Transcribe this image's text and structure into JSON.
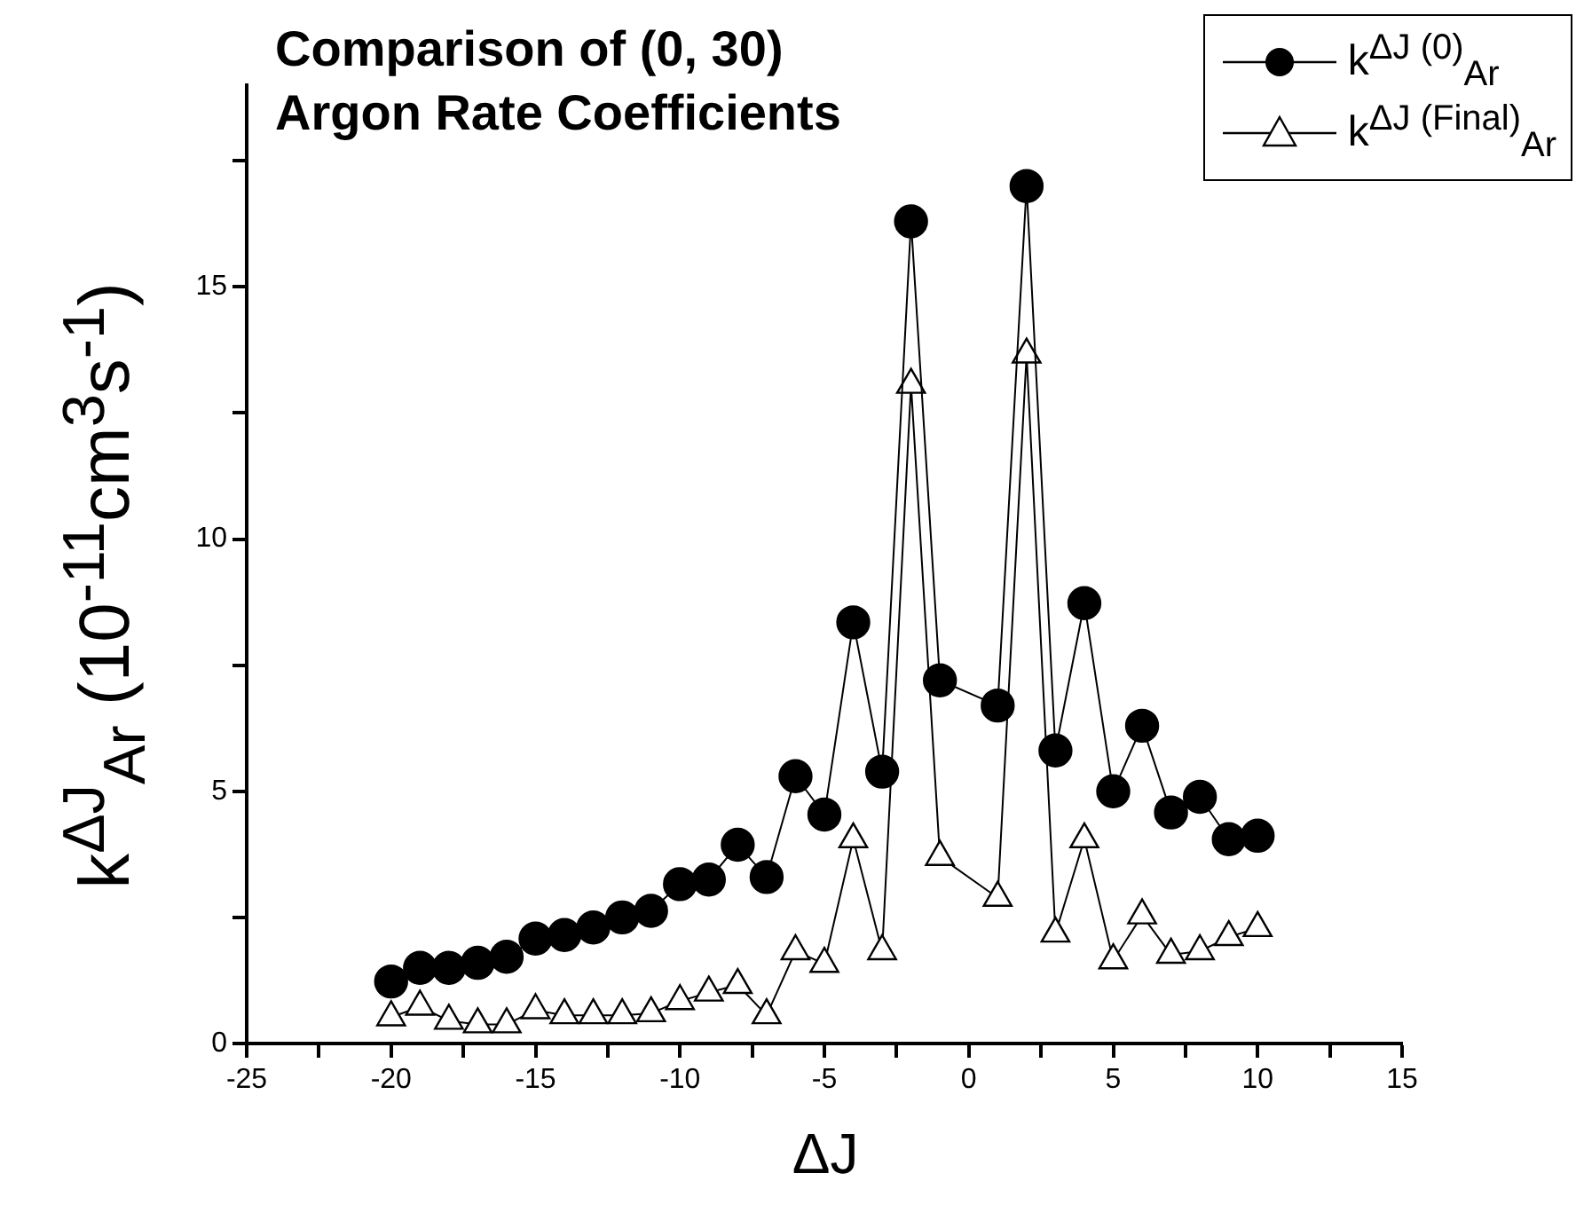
{
  "chart_data": {
    "type": "line",
    "title": "Comparison of (0, 30) Argon Rate Coefficients",
    "xlabel": "ΔJ",
    "ylabel": "k$^{ΔJ}$$_{Ar}$ (10$^{-11}$cm$^{3}$s$^{-1}$)",
    "x": [
      -20,
      -19,
      -18,
      -17,
      -16,
      -15,
      -14,
      -13,
      -12,
      -11,
      -10,
      -9,
      -8,
      -7,
      -6,
      -5,
      -4,
      -3,
      -2,
      -1,
      1,
      2,
      3,
      4,
      5,
      6,
      7,
      8,
      9,
      10
    ],
    "series": [
      {
        "name": "k$^{ΔJ (0)}$$_{Ar}$",
        "color": "#000000",
        "marker": "circle",
        "values": [
          1.23,
          1.5,
          1.5,
          1.6,
          1.72,
          2.08,
          2.15,
          2.3,
          2.5,
          2.63,
          3.16,
          3.25,
          3.94,
          3.3,
          5.3,
          4.54,
          8.35,
          5.39,
          16.3,
          7.2,
          6.7,
          17.0,
          5.81,
          8.73,
          5.0,
          6.3,
          4.58,
          4.89,
          4.05,
          4.12
        ]
      },
      {
        "name": "k$^{ΔJ (Final)}$$_{Ar}$",
        "color": "#000000",
        "marker": "triangle",
        "values": [
          0.52,
          0.73,
          0.45,
          0.38,
          0.38,
          0.66,
          0.56,
          0.56,
          0.56,
          0.6,
          0.84,
          1.01,
          1.16,
          0.56,
          1.83,
          1.58,
          4.05,
          1.83,
          13.06,
          3.7,
          2.89,
          13.66,
          2.18,
          4.05,
          1.65,
          2.54,
          1.76,
          1.83,
          2.11,
          2.29
        ]
      }
    ],
    "xlim": [
      -25,
      15
    ],
    "xticks": [
      -25,
      {
        "value": -22.5,
        "label": null
      },
      -20,
      {
        "value": -17.5,
        "label": null
      },
      -15,
      {
        "value": -12.5,
        "label": null
      },
      -10,
      {
        "value": -7.5,
        "label": null
      },
      -5,
      {
        "value": -2.5,
        "label": null
      },
      0,
      {
        "value": 2.5,
        "label": null
      },
      5,
      {
        "value": 7.5,
        "label": null
      },
      10,
      {
        "value": 12.5,
        "label": null
      },
      15
    ],
    "ylim": [
      0,
      19
    ],
    "yticks": [
      0,
      {
        "value": 2.5,
        "label": null
      },
      5,
      {
        "value": 7.5,
        "label": null
      },
      10,
      {
        "value": 12.5,
        "label": null
      },
      15,
      {
        "value": 17.5,
        "label": null
      }
    ],
    "legend": "top right",
    "line_style": "solid"
  }
}
